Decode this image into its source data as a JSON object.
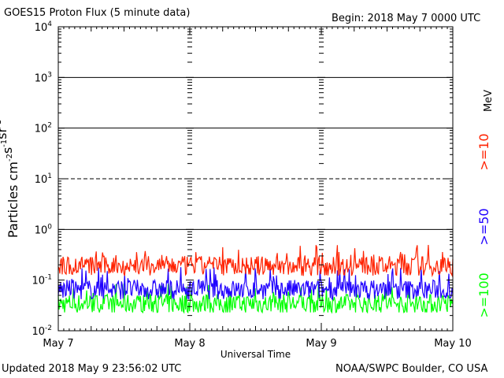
{
  "header": {
    "title": "GOES15 Proton Flux (5 minute data)",
    "begin": "Begin: 2018 May 7 0000 UTC"
  },
  "footer": {
    "updated": "Updated 2018 May  9 23:56:02 UTC",
    "credit": "NOAA/SWPC Boulder, CO USA"
  },
  "colors": {
    "ge10": "#ff2200",
    "ge50": "#1f00ff",
    "ge100": "#00ff00",
    "axis": "#000000"
  },
  "chart_data": {
    "type": "line",
    "xlabel": "Universal Time",
    "ylabel_base": "Particles cm",
    "ylabel_sups": [
      "-2",
      "-1",
      "-1"
    ],
    "ylabel_units": [
      "s",
      "sr"
    ],
    "x_ticks": [
      "May 7",
      "May 8",
      "May 9",
      "May 10"
    ],
    "xlim": [
      0,
      3
    ],
    "y_scale": "log",
    "ylim": [
      0.01,
      10000
    ],
    "y_ticks": [
      {
        "base": "10",
        "exp": "-2",
        "value": 0.01
      },
      {
        "base": "10",
        "exp": "-1",
        "value": 0.1
      },
      {
        "base": "10",
        "exp": "0",
        "value": 1
      },
      {
        "base": "10",
        "exp": "1",
        "value": 10
      },
      {
        "base": "10",
        "exp": "2",
        "value": 100
      },
      {
        "base": "10",
        "exp": "3",
        "value": 1000
      },
      {
        "base": "10",
        "exp": "4",
        "value": 10000
      }
    ],
    "reference_lines": [
      {
        "value": 1,
        "style": "solid"
      },
      {
        "value": 10,
        "style": "dashed"
      },
      {
        "value": 100,
        "style": "solid"
      },
      {
        "value": 1000,
        "style": "solid"
      }
    ],
    "legend_unit": "MeV",
    "series": [
      {
        "name": ">=10",
        "color_key": "ge10",
        "typical": 0.19,
        "low": 0.11,
        "high": 0.5
      },
      {
        "name": ">=50",
        "color_key": "ge50",
        "typical": 0.065,
        "low": 0.04,
        "high": 0.18
      },
      {
        "name": ">=100",
        "color_key": "ge100",
        "typical": 0.034,
        "low": 0.023,
        "high": 0.085
      }
    ]
  }
}
